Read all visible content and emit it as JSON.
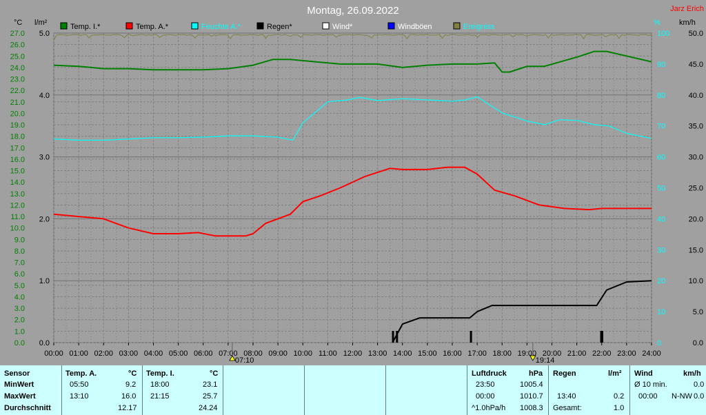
{
  "header": {
    "title": "Montag, 26.09.2022",
    "author": "Jarz Erich",
    "unit_left_temp": "°C",
    "unit_left_rain": "l/m²",
    "unit_right_pct": "%",
    "unit_right_wind": "km/h"
  },
  "legend": [
    {
      "label": "Temp. I.*",
      "color": "#008000",
      "text_color": "#000000"
    },
    {
      "label": "Temp. A.*",
      "color": "#ff0000",
      "text_color": "#000000"
    },
    {
      "label": "Feuchte A.*",
      "color": "#00ffff",
      "text_color": "#00ffff"
    },
    {
      "label": "Regen*",
      "color": "#000000",
      "text_color": "#000000"
    },
    {
      "label": "Wind*",
      "color": "#ffffff",
      "text_color": "#ffffff"
    },
    {
      "label": "Windböen",
      "color": "#0000ff",
      "text_color": "#ffffff"
    },
    {
      "label": "Ereigniss",
      "color": "#808040",
      "text_color": "#00ffff"
    }
  ],
  "markers": {
    "sunrise": "07:10",
    "sunset": "19:14"
  },
  "chart_data": {
    "type": "line",
    "x_unit": "hour",
    "xlim": [
      0,
      24
    ],
    "x_ticks": [
      "00:00",
      "01:00",
      "02:00",
      "03:00",
      "04:00",
      "05:00",
      "06:00",
      "07:00",
      "08:00",
      "09:00",
      "10:00",
      "11:00",
      "12:00",
      "13:00",
      "14:00",
      "15:00",
      "16:00",
      "17:00",
      "18:00",
      "19:00",
      "20:00",
      "21:00",
      "22:00",
      "23:00",
      "24:00"
    ],
    "temp_axis": {
      "label": "°C",
      "ylim": [
        0,
        27
      ],
      "ticks": [
        "0.0",
        "1.0",
        "2.0",
        "3.0",
        "4.0",
        "5.0",
        "6.0",
        "7.0",
        "8.0",
        "9.0",
        "10.0",
        "11.0",
        "12.0",
        "13.0",
        "14.0",
        "15.0",
        "16.0",
        "17.0",
        "18.0",
        "19.0",
        "20.0",
        "21.0",
        "22.0",
        "23.0",
        "24.0",
        "25.0",
        "26.0",
        "27.0"
      ]
    },
    "rain_axis": {
      "label": "l/m²",
      "ylim": [
        0,
        5
      ],
      "ticks": [
        "0.0",
        "1.0",
        "2.0",
        "3.0",
        "4.0",
        "5.0"
      ]
    },
    "humidity_axis": {
      "label": "%",
      "ylim": [
        0,
        100
      ],
      "ticks": [
        "0",
        "10",
        "20",
        "30",
        "40",
        "50",
        "60",
        "70",
        "80",
        "90",
        "100"
      ]
    },
    "wind_axis": {
      "label": "km/h",
      "ylim": [
        0,
        50
      ],
      "ticks": [
        "0.0",
        "5.0",
        "10.0",
        "15.0",
        "20.0",
        "25.0",
        "30.0",
        "35.0",
        "40.0",
        "45.0",
        "50.0"
      ]
    },
    "grid": true,
    "series": [
      {
        "name": "Temp. I.*",
        "axis": "temp",
        "color": "#008000",
        "points": [
          [
            0,
            24.2
          ],
          [
            1,
            24.1
          ],
          [
            2,
            23.9
          ],
          [
            3,
            23.9
          ],
          [
            4,
            23.8
          ],
          [
            5,
            23.8
          ],
          [
            6,
            23.8
          ],
          [
            7,
            23.9
          ],
          [
            8,
            24.2
          ],
          [
            8.8,
            24.7
          ],
          [
            9.5,
            24.7
          ],
          [
            10.5,
            24.5
          ],
          [
            11.5,
            24.3
          ],
          [
            12.5,
            24.3
          ],
          [
            13,
            24.3
          ],
          [
            14,
            24.0
          ],
          [
            15,
            24.2
          ],
          [
            16,
            24.3
          ],
          [
            17,
            24.3
          ],
          [
            17.7,
            24.4
          ],
          [
            18,
            23.6
          ],
          [
            18.3,
            23.6
          ],
          [
            19,
            24.1
          ],
          [
            19.7,
            24.1
          ],
          [
            20.5,
            24.6
          ],
          [
            21,
            24.9
          ],
          [
            21.7,
            25.4
          ],
          [
            22.2,
            25.4
          ],
          [
            23,
            25.0
          ],
          [
            24,
            24.5
          ]
        ]
      },
      {
        "name": "Temp. A.*",
        "axis": "temp",
        "color": "#ff0000",
        "points": [
          [
            0,
            11.2
          ],
          [
            1,
            11.0
          ],
          [
            2,
            10.8
          ],
          [
            3,
            10.0
          ],
          [
            4,
            9.5
          ],
          [
            5,
            9.5
          ],
          [
            5.8,
            9.6
          ],
          [
            6.5,
            9.3
          ],
          [
            7,
            9.3
          ],
          [
            7.7,
            9.3
          ],
          [
            8,
            9.5
          ],
          [
            8.5,
            10.4
          ],
          [
            9.5,
            11.2
          ],
          [
            10,
            12.3
          ],
          [
            10.7,
            12.8
          ],
          [
            11.5,
            13.5
          ],
          [
            12.5,
            14.5
          ],
          [
            13.5,
            15.2
          ],
          [
            14,
            15.1
          ],
          [
            15,
            15.1
          ],
          [
            15.8,
            15.3
          ],
          [
            16.5,
            15.3
          ],
          [
            17,
            14.7
          ],
          [
            17.7,
            13.3
          ],
          [
            18.5,
            12.8
          ],
          [
            19.5,
            12.0
          ],
          [
            20.5,
            11.7
          ],
          [
            21.5,
            11.6
          ],
          [
            22,
            11.7
          ],
          [
            23,
            11.7
          ],
          [
            24,
            11.7
          ]
        ]
      },
      {
        "name": "Feuchte A.*",
        "axis": "humidity",
        "color": "#00ffff",
        "points": [
          [
            0,
            65.8
          ],
          [
            1,
            65.4
          ],
          [
            2,
            65.4
          ],
          [
            3,
            65.8
          ],
          [
            4,
            66.2
          ],
          [
            5,
            66.2
          ],
          [
            6,
            66.4
          ],
          [
            7,
            66.8
          ],
          [
            8,
            66.8
          ],
          [
            9,
            66.4
          ],
          [
            9.6,
            65.4
          ],
          [
            10,
            71.0
          ],
          [
            11,
            77.8
          ],
          [
            11.8,
            78.4
          ],
          [
            12.3,
            79.2
          ],
          [
            13,
            78.2
          ],
          [
            14,
            78.8
          ],
          [
            15,
            78.4
          ],
          [
            16,
            78.0
          ],
          [
            16.5,
            78.4
          ],
          [
            17,
            79.4
          ],
          [
            18,
            74.2
          ],
          [
            19,
            71.6
          ],
          [
            19.7,
            70.4
          ],
          [
            20.3,
            72.0
          ],
          [
            21,
            71.8
          ],
          [
            21.7,
            70.4
          ],
          [
            22.3,
            70.0
          ],
          [
            23,
            67.6
          ],
          [
            24,
            66.0
          ]
        ]
      },
      {
        "name": "Regen*",
        "axis": "rain",
        "color": "#000000",
        "points": [
          [
            13.6,
            0.0
          ],
          [
            14,
            0.3
          ],
          [
            14.7,
            0.4
          ],
          [
            16.7,
            0.4
          ],
          [
            17,
            0.5
          ],
          [
            17.6,
            0.6
          ],
          [
            21.8,
            0.6
          ],
          [
            22.2,
            0.85
          ],
          [
            23,
            0.98
          ],
          [
            24,
            1.0
          ]
        ],
        "spikes": [
          13.62,
          13.78,
          16.75,
          21.98,
          22.02
        ]
      }
    ],
    "event_strip": "top noise band near 100% humidity line"
  },
  "stats": {
    "labels": {
      "sensor": "Sensor",
      "min": "MinWert",
      "max": "MaxWert",
      "avg": "Durchschnitt"
    },
    "temp_a": {
      "head": "Temp. A.",
      "unit": "°C",
      "min_time": "05:50",
      "min": "9.2",
      "max_time": "13:10",
      "max": "16.0",
      "avg": "12.17"
    },
    "temp_i": {
      "head": "Temp. I.",
      "unit": "°C",
      "min_time": "18:00",
      "min": "23.1",
      "max_time": "21:15",
      "max": "25.7",
      "avg": "24.24"
    },
    "pressure": {
      "head": "Luftdruck",
      "unit": "hPa",
      "min_time": "23:50",
      "min": "1005.4",
      "max_time": "00:00",
      "max": "1010.7",
      "trend_label": "^1.0hPa/h",
      "trend_value": "1008.3"
    },
    "rain": {
      "head": "Regen",
      "unit": "l/m²",
      "max_time": "13:40",
      "max": "0.2",
      "total_label": "Gesamt:",
      "total": "1.0"
    },
    "wind": {
      "head": "Wind",
      "unit": "km/h",
      "avg_label": "Ø 10 min.",
      "avg": "0.0",
      "max_time": "00:00",
      "max_dir": "N-NW",
      "max": "0.0"
    }
  }
}
